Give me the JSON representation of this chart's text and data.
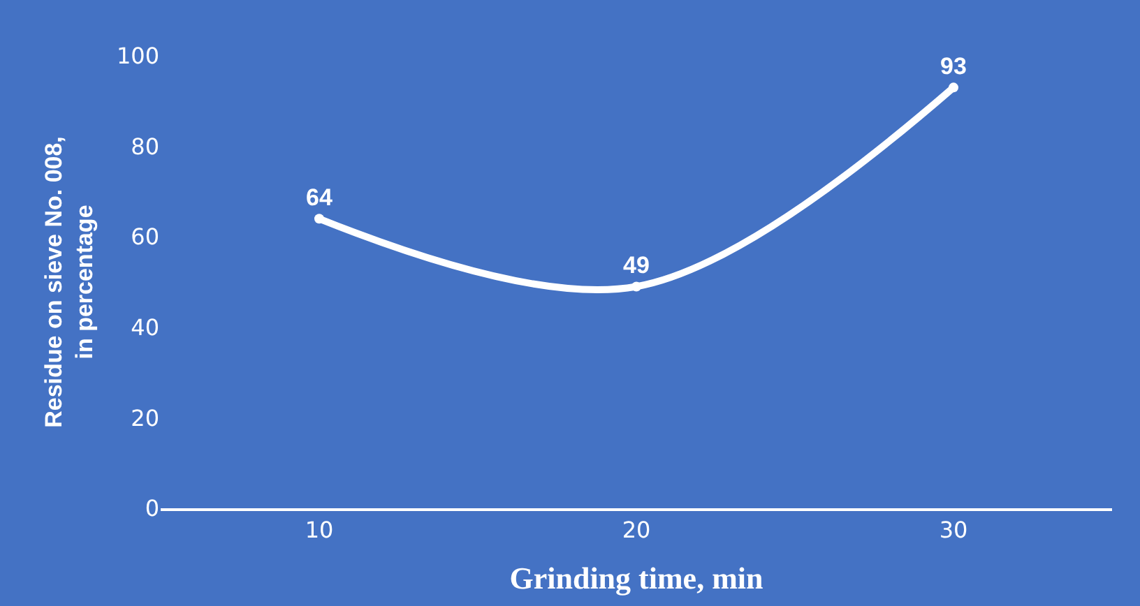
{
  "chart_data": {
    "type": "line",
    "xlabel": "Grinding time, min",
    "ylabel": "Residue on sieve No. 008, in percentage",
    "categories": [
      "10",
      "20",
      "30"
    ],
    "series": [
      {
        "color": "#ffffff",
        "values": [
          64,
          49,
          93
        ]
      }
    ],
    "ylim": [
      0,
      100
    ],
    "yticks": [
      0,
      20,
      40,
      60,
      80,
      100
    ],
    "grid": false,
    "legend": false,
    "marker": "circle",
    "line_style": "solid",
    "data_labels": true
  }
}
